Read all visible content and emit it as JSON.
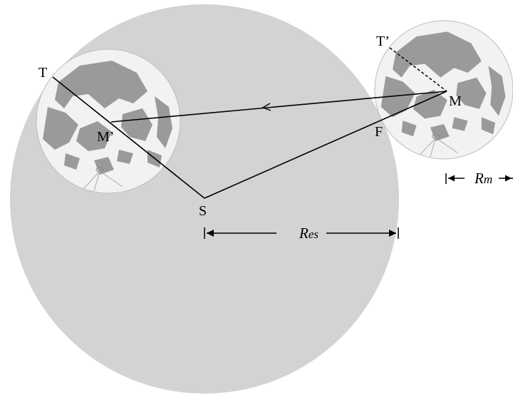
{
  "labels": {
    "T": "T",
    "M_prime": "M’",
    "S": "S",
    "T_prime": "T’",
    "M": "M",
    "F": "F",
    "R_es_main": "R",
    "R_es_sub": "es",
    "R_m_main": "R",
    "R_m_sub": "m"
  },
  "colors": {
    "shadow": "#d3d3d3",
    "moon_face": "#f2f2f2",
    "maria": "#9a9a9a",
    "line": "#000000"
  }
}
